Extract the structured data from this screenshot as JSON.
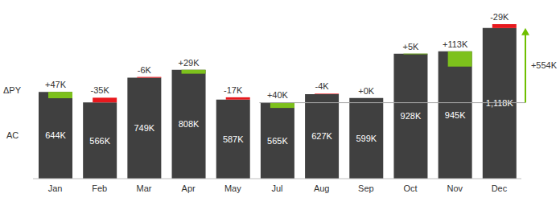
{
  "chart_data": {
    "type": "bar",
    "categories": [
      "Jan",
      "Feb",
      "Mar",
      "Apr",
      "May",
      "Jul",
      "Aug",
      "Sep",
      "Oct",
      "Nov",
      "Dec"
    ],
    "series": [
      {
        "name": "AC",
        "color": "#404040",
        "values": [
          644,
          566,
          749,
          808,
          587,
          565,
          627,
          599,
          928,
          945,
          1118
        ],
        "value_labels": [
          "644K",
          "566K",
          "749K",
          "808K",
          "587K",
          "565K",
          "627K",
          "599K",
          "928K",
          "945K",
          "1,118K"
        ]
      },
      {
        "name": "ΔPY",
        "type": "delta",
        "values": [
          47,
          -35,
          -6,
          29,
          -17,
          40,
          -4,
          0,
          5,
          113,
          -29
        ],
        "value_labels": [
          "+47K",
          "-35K",
          "-6K",
          "+29K",
          "-17K",
          "+40K",
          "-4K",
          "+0K",
          "+5K",
          "+113K",
          "-29K"
        ],
        "colors": [
          "#7dc11c",
          "#e8191e",
          "#e8191e",
          "#7dc11c",
          "#e8191e",
          "#7dc11c",
          "#e8191e",
          "#7dc11c",
          "#7dc11c",
          "#7dc11c",
          "#e8191e"
        ]
      }
    ],
    "annotations": [
      {
        "text": "+554K",
        "value": 554,
        "from": "Jul",
        "to": "Dec"
      }
    ],
    "data_labels": true,
    "tick_labels": "x"
  }
}
